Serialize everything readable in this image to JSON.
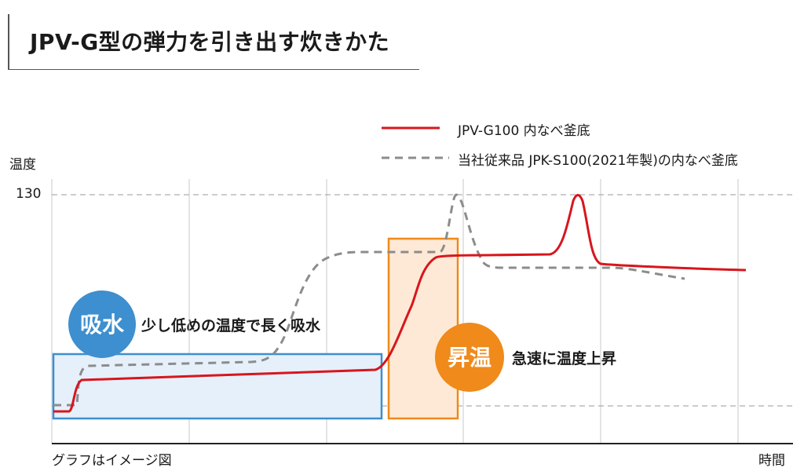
{
  "title": "JPV-G型の弾力を引き出す炊きかた",
  "chart_data": {
    "type": "line",
    "ylabel": "温度",
    "xlabel": "時間",
    "y_ticks": [
      130
    ],
    "note": "グラフはイメージ図",
    "series": [
      {
        "name": "JPV-G100 内なべ釜底",
        "color": "#d7161d",
        "style": "solid"
      },
      {
        "name": "当社従来品 JPK-S100(2021年製)の内なべ釜底",
        "color": "#8c8c8c",
        "style": "dashed"
      }
    ],
    "phases": [
      {
        "badge": "吸水",
        "caption": "少し低めの温度で長く吸水",
        "color": "#3d8fcf",
        "fill": "#e6f0fb"
      },
      {
        "badge": "昇温",
        "caption": "急速に温度上昇",
        "color": "#ef8a1b",
        "fill": "#fde9d6"
      }
    ]
  }
}
